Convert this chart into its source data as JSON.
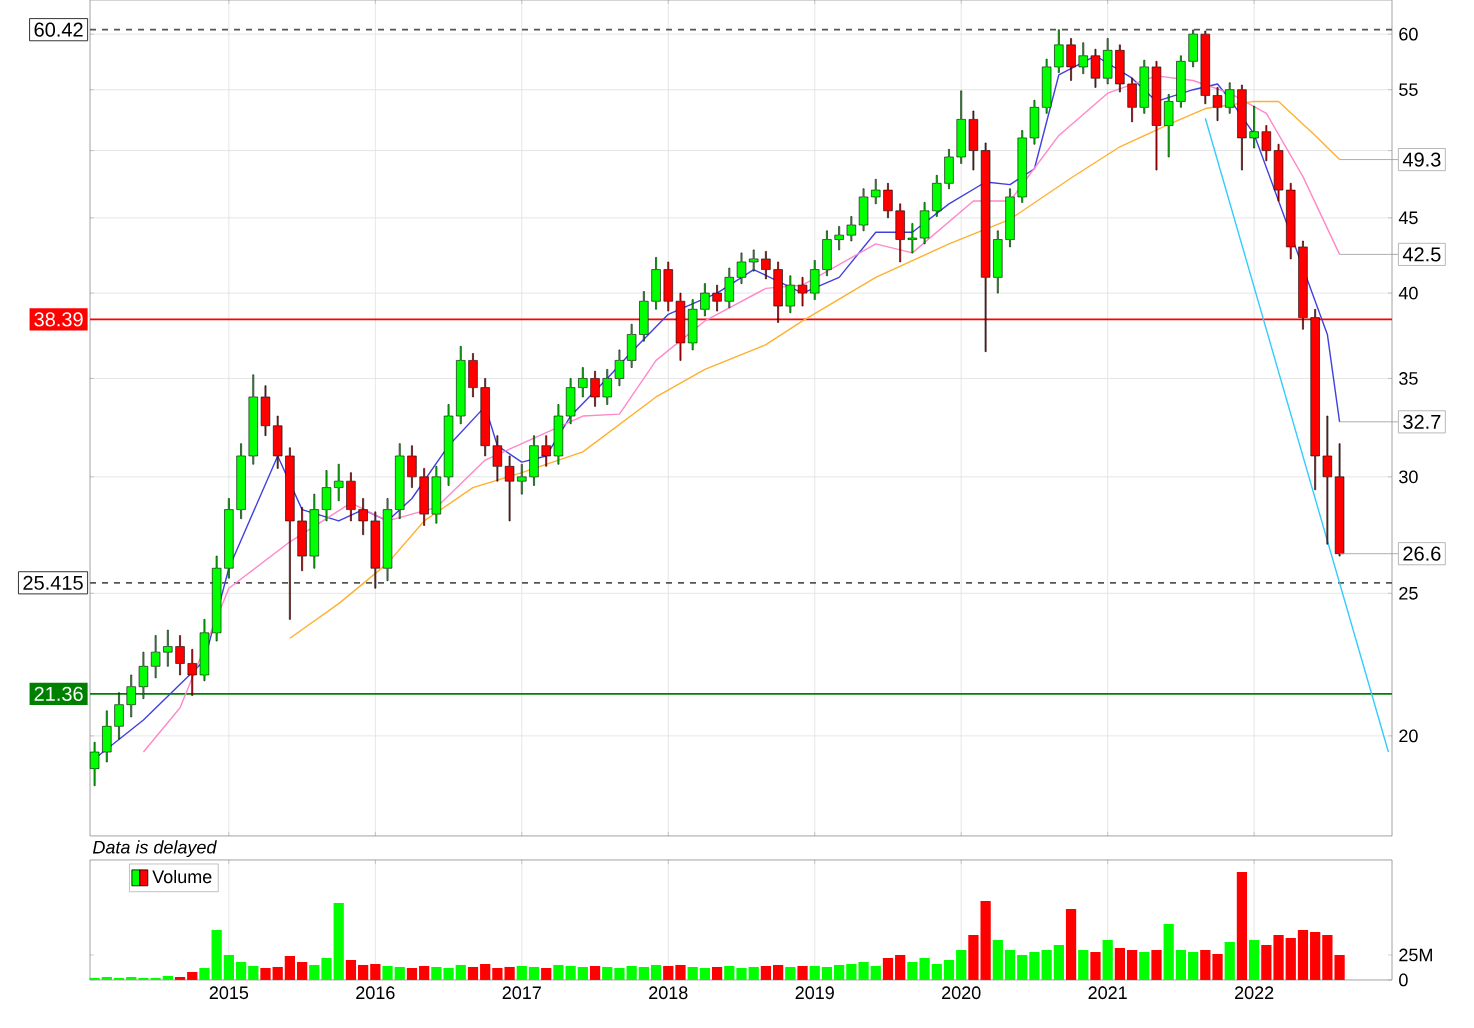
{
  "chart_data": [
    {
      "type": "candlestick",
      "x": [
        "2014-02",
        "2014-03",
        "2014-04",
        "2014-05",
        "2014-06",
        "2014-07",
        "2014-08",
        "2014-09",
        "2014-10",
        "2014-11",
        "2014-12",
        "2015-01",
        "2015-02",
        "2015-03",
        "2015-04",
        "2015-05",
        "2015-06",
        "2015-07",
        "2015-08",
        "2015-09",
        "2015-10",
        "2015-11",
        "2015-12",
        "2016-01",
        "2016-02",
        "2016-03",
        "2016-04",
        "2016-05",
        "2016-06",
        "2016-07",
        "2016-08",
        "2016-09",
        "2016-10",
        "2016-11",
        "2016-12",
        "2017-01",
        "2017-02",
        "2017-03",
        "2017-04",
        "2017-05",
        "2017-06",
        "2017-07",
        "2017-08",
        "2017-09",
        "2017-10",
        "2017-11",
        "2017-12",
        "2018-01",
        "2018-02",
        "2018-03",
        "2018-04",
        "2018-05",
        "2018-06",
        "2018-07",
        "2018-08",
        "2018-09",
        "2018-10",
        "2018-11",
        "2018-12",
        "2019-01",
        "2019-02",
        "2019-03",
        "2019-04",
        "2019-05",
        "2019-06",
        "2019-07",
        "2019-08",
        "2019-09",
        "2019-10",
        "2019-11",
        "2019-12",
        "2020-01",
        "2020-02",
        "2020-03",
        "2020-04",
        "2020-05",
        "2020-06",
        "2020-07",
        "2020-08",
        "2020-09",
        "2020-10",
        "2020-11",
        "2020-12",
        "2021-01",
        "2021-02",
        "2021-03",
        "2021-04",
        "2021-05",
        "2021-06",
        "2021-07",
        "2021-08",
        "2021-09",
        "2021-10",
        "2021-11",
        "2021-12",
        "2022-01",
        "2022-02",
        "2022-03",
        "2022-04",
        "2022-05",
        "2022-06",
        "2022-07",
        "2022-08"
      ],
      "ohlc": [
        [
          19.0,
          19.8,
          18.5,
          19.5
        ],
        [
          19.5,
          20.8,
          19.2,
          20.3
        ],
        [
          20.3,
          21.4,
          19.9,
          21.0
        ],
        [
          21.0,
          22.0,
          20.6,
          21.6
        ],
        [
          21.6,
          22.8,
          21.2,
          22.3
        ],
        [
          22.3,
          23.4,
          21.9,
          22.8
        ],
        [
          22.8,
          23.6,
          22.3,
          23.0
        ],
        [
          23.0,
          23.4,
          22.0,
          22.4
        ],
        [
          22.4,
          22.9,
          21.3,
          22.0
        ],
        [
          22.0,
          24.0,
          21.8,
          23.5
        ],
        [
          23.5,
          26.5,
          23.2,
          26.0
        ],
        [
          26.0,
          29.0,
          25.6,
          28.5
        ],
        [
          28.5,
          31.6,
          28.1,
          31.0
        ],
        [
          31.0,
          35.2,
          30.6,
          34.0
        ],
        [
          34.0,
          34.6,
          32.0,
          32.5
        ],
        [
          32.5,
          33.0,
          30.4,
          31.0
        ],
        [
          31.0,
          31.4,
          24.0,
          28.0
        ],
        [
          28.0,
          28.6,
          25.9,
          26.5
        ],
        [
          26.5,
          29.2,
          26.0,
          28.5
        ],
        [
          28.5,
          30.3,
          28.0,
          29.5
        ],
        [
          29.5,
          30.6,
          28.9,
          29.8
        ],
        [
          29.8,
          30.2,
          28.0,
          28.5
        ],
        [
          28.5,
          29.0,
          27.4,
          28.0
        ],
        [
          28.0,
          28.4,
          25.2,
          26.0
        ],
        [
          26.0,
          29.0,
          25.5,
          28.5
        ],
        [
          28.5,
          31.6,
          28.1,
          31.0
        ],
        [
          31.0,
          31.5,
          29.5,
          30.0
        ],
        [
          30.0,
          30.4,
          27.8,
          28.3
        ],
        [
          28.3,
          30.5,
          27.9,
          30.0
        ],
        [
          30.0,
          33.6,
          29.6,
          33.0
        ],
        [
          33.0,
          36.8,
          32.6,
          36.0
        ],
        [
          36.0,
          36.4,
          34.0,
          34.5
        ],
        [
          34.5,
          35.0,
          31.0,
          31.5
        ],
        [
          31.5,
          32.0,
          29.8,
          30.5
        ],
        [
          30.5,
          31.0,
          28.0,
          29.8
        ],
        [
          29.8,
          30.6,
          29.2,
          30.0
        ],
        [
          30.0,
          32.0,
          29.6,
          31.5
        ],
        [
          31.5,
          32.0,
          30.5,
          31.0
        ],
        [
          31.0,
          33.6,
          30.6,
          33.0
        ],
        [
          33.0,
          35.0,
          32.6,
          34.5
        ],
        [
          34.5,
          35.6,
          34.0,
          35.0
        ],
        [
          35.0,
          35.4,
          33.5,
          34.0
        ],
        [
          34.0,
          35.5,
          33.6,
          35.0
        ],
        [
          35.0,
          36.6,
          34.6,
          36.0
        ],
        [
          36.0,
          38.1,
          35.6,
          37.5
        ],
        [
          37.5,
          40.1,
          37.1,
          39.5
        ],
        [
          39.5,
          42.3,
          39.0,
          41.5
        ],
        [
          41.5,
          42.0,
          38.9,
          39.5
        ],
        [
          39.5,
          40.0,
          36.0,
          37.0
        ],
        [
          37.0,
          39.6,
          36.6,
          39.0
        ],
        [
          39.0,
          40.6,
          38.6,
          40.0
        ],
        [
          40.0,
          40.5,
          38.9,
          39.5
        ],
        [
          39.5,
          41.6,
          39.1,
          41.0
        ],
        [
          41.0,
          42.6,
          40.6,
          42.0
        ],
        [
          42.0,
          42.8,
          41.4,
          42.2
        ],
        [
          42.2,
          42.7,
          40.9,
          41.5
        ],
        [
          41.5,
          42.0,
          38.2,
          39.2
        ],
        [
          39.2,
          41.1,
          38.8,
          40.5
        ],
        [
          40.5,
          41.0,
          39.2,
          40.0
        ],
        [
          40.0,
          42.1,
          39.6,
          41.5
        ],
        [
          41.5,
          44.1,
          41.1,
          43.5
        ],
        [
          43.5,
          44.4,
          42.8,
          43.8
        ],
        [
          43.8,
          45.1,
          43.4,
          44.5
        ],
        [
          44.5,
          47.1,
          44.1,
          46.5
        ],
        [
          46.5,
          47.8,
          46.0,
          47.0
        ],
        [
          47.0,
          47.5,
          45.0,
          45.5
        ],
        [
          45.5,
          46.0,
          42.0,
          43.5
        ],
        [
          43.5,
          44.6,
          42.6,
          43.6
        ],
        [
          43.6,
          46.1,
          43.2,
          45.5
        ],
        [
          45.5,
          48.1,
          45.1,
          47.5
        ],
        [
          47.5,
          50.1,
          47.1,
          49.5
        ],
        [
          49.5,
          54.9,
          49.0,
          52.5
        ],
        [
          52.5,
          53.2,
          48.5,
          50.0
        ],
        [
          50.0,
          50.6,
          36.5,
          41.0
        ],
        [
          41.0,
          44.1,
          40.0,
          43.5
        ],
        [
          43.5,
          47.1,
          43.0,
          46.5
        ],
        [
          46.5,
          51.6,
          46.1,
          51.0
        ],
        [
          51.0,
          54.1,
          50.5,
          53.5
        ],
        [
          53.5,
          57.7,
          53.0,
          57.0
        ],
        [
          57.0,
          60.42,
          56.5,
          59.0
        ],
        [
          59.0,
          59.6,
          55.8,
          57.0
        ],
        [
          57.0,
          59.2,
          56.4,
          58.0
        ],
        [
          58.0,
          58.6,
          55.2,
          56.0
        ],
        [
          56.0,
          59.6,
          55.5,
          58.5
        ],
        [
          58.5,
          59.0,
          54.8,
          55.5
        ],
        [
          55.5,
          56.0,
          52.3,
          53.5
        ],
        [
          53.5,
          57.6,
          53.0,
          57.0
        ],
        [
          57.0,
          57.5,
          48.5,
          52.0
        ],
        [
          52.0,
          54.6,
          49.5,
          54.0
        ],
        [
          54.0,
          58.0,
          53.5,
          57.5
        ],
        [
          57.5,
          60.4,
          57.0,
          60.0
        ],
        [
          60.0,
          60.3,
          53.8,
          54.5
        ],
        [
          54.5,
          55.2,
          52.4,
          53.5
        ],
        [
          53.5,
          55.6,
          53.0,
          55.0
        ],
        [
          55.0,
          55.4,
          48.5,
          51.0
        ],
        [
          51.0,
          53.6,
          50.2,
          51.5
        ],
        [
          51.5,
          52.0,
          49.2,
          50.0
        ],
        [
          50.0,
          50.5,
          46.2,
          47.0
        ],
        [
          47.0,
          47.5,
          42.2,
          43.0
        ],
        [
          43.0,
          43.4,
          37.8,
          38.5
        ],
        [
          38.5,
          39.0,
          29.4,
          31.0
        ],
        [
          31.0,
          33.0,
          27.0,
          30.0
        ],
        [
          30.0,
          31.6,
          26.5,
          26.6
        ]
      ],
      "colors": [
        "#00ff00",
        "#00ff00",
        "#00ff00",
        "#00ff00",
        "#00ff00",
        "#00ff00",
        "#00ff00",
        "#ff0000",
        "#ff0000",
        "#00ff00",
        "#00ff00",
        "#00ff00",
        "#00ff00",
        "#00ff00",
        "#ff0000",
        "#ff0000",
        "#ff0000",
        "#ff0000",
        "#00ff00",
        "#00ff00",
        "#00ff00",
        "#ff0000",
        "#ff0000",
        "#ff0000",
        "#00ff00",
        "#00ff00",
        "#ff0000",
        "#ff0000",
        "#00ff00",
        "#00ff00",
        "#00ff00",
        "#ff0000",
        "#ff0000",
        "#ff0000",
        "#ff0000",
        "#00ff00",
        "#00ff00",
        "#ff0000",
        "#00ff00",
        "#00ff00",
        "#00ff00",
        "#ff0000",
        "#00ff00",
        "#00ff00",
        "#00ff00",
        "#00ff00",
        "#00ff00",
        "#ff0000",
        "#ff0000",
        "#00ff00",
        "#00ff00",
        "#ff0000",
        "#00ff00",
        "#00ff00",
        "#00ff00",
        "#ff0000",
        "#ff0000",
        "#00ff00",
        "#ff0000",
        "#00ff00",
        "#00ff00",
        "#00ff00",
        "#00ff00",
        "#00ff00",
        "#00ff00",
        "#ff0000",
        "#ff0000",
        "#00ff00",
        "#00ff00",
        "#00ff00",
        "#00ff00",
        "#00ff00",
        "#ff0000",
        "#ff0000",
        "#00ff00",
        "#00ff00",
        "#00ff00",
        "#00ff00",
        "#00ff00",
        "#00ff00",
        "#ff0000",
        "#00ff00",
        "#ff0000",
        "#00ff00",
        "#ff0000",
        "#ff0000",
        "#00ff00",
        "#ff0000",
        "#00ff00",
        "#00ff00",
        "#00ff00",
        "#ff0000",
        "#ff0000",
        "#00ff00",
        "#ff0000",
        "#00ff00",
        "#ff0000",
        "#ff0000",
        "#ff0000",
        "#ff0000",
        "#ff0000",
        "#ff0000",
        "#ff0000"
      ],
      "series": [
        {
          "type": "line",
          "color": "#4040e0",
          "x": [
            "2014-02",
            "2014-06",
            "2014-11",
            "2015-01",
            "2015-05",
            "2015-07",
            "2015-10",
            "2015-12",
            "2016-02",
            "2016-04",
            "2016-07",
            "2016-10",
            "2016-11",
            "2017-01",
            "2017-03",
            "2017-05",
            "2017-08",
            "2017-10",
            "2018-01",
            "2018-05",
            "2018-08",
            "2018-12",
            "2019-03",
            "2019-06",
            "2019-09",
            "2019-12",
            "2020-03",
            "2020-05",
            "2020-07",
            "2020-09",
            "2020-12",
            "2021-03",
            "2021-05",
            "2021-08",
            "2021-10",
            "2021-11",
            "2022-01",
            "2022-03",
            "2022-07",
            "2022-08"
          ],
          "values": [
            19.3,
            20.5,
            22.5,
            26,
            31,
            28.5,
            28,
            28.5,
            28,
            29,
            31.5,
            33.5,
            31.5,
            30.7,
            31,
            33,
            35,
            36.5,
            38.7,
            40,
            41.5,
            40,
            41,
            44,
            44,
            46,
            47.6,
            47.4,
            48.6,
            56.3,
            58,
            56,
            54,
            55,
            55.5,
            54.2,
            51.3,
            null,
            37.5,
            32.7
          ]
        },
        {
          "type": "line",
          "color": "#ff88c8",
          "x": [
            "2014-06",
            "2014-09",
            "2015-01",
            "2015-06",
            "2015-11",
            "2016-02",
            "2016-06",
            "2016-10",
            "2017-01",
            "2017-06",
            "2017-09",
            "2017-12",
            "2018-04",
            "2018-09",
            "2018-12",
            "2019-06",
            "2019-09",
            "2020-02",
            "2020-05",
            "2020-09",
            "2021-01",
            "2021-05",
            "2021-08",
            "2021-11",
            "2022-02",
            "2022-05",
            "2022-08"
          ],
          "values": [
            19.5,
            20.9,
            25.2,
            27.1,
            28.8,
            28,
            28.6,
            30.8,
            31.6,
            33,
            33.1,
            36,
            38.3,
            40.3,
            40.5,
            43.2,
            42.6,
            46.2,
            46.2,
            51.2,
            54.7,
            56.2,
            55.8,
            54.7,
            53,
            48,
            42.5
          ]
        },
        {
          "type": "line",
          "color": "#ffb030",
          "x": [
            "2015-06",
            "2015-10",
            "2016-02",
            "2016-05",
            "2016-09",
            "2017-01",
            "2017-06",
            "2017-12",
            "2018-04",
            "2018-09",
            "2018-12",
            "2019-06",
            "2019-12",
            "2020-05",
            "2020-10",
            "2021-02",
            "2021-06",
            "2021-09",
            "2022-01",
            "2022-03",
            "2022-06",
            "2022-08"
          ],
          "values": [
            23.3,
            24.6,
            26.2,
            28,
            29.5,
            30.2,
            31.2,
            34,
            35.5,
            36.9,
            38.3,
            41,
            43.2,
            44.9,
            47.9,
            50.3,
            52.1,
            53.4,
            54,
            54,
            51.2,
            49.3
          ]
        },
        {
          "type": "line",
          "color": "#33ccff",
          "x": [
            "2021-09",
            "2022-12"
          ],
          "values": [
            52.6,
            19.5
          ]
        }
      ],
      "ref_lines": [
        {
          "axis": "y",
          "value": 60.42,
          "label": "60.42",
          "color": "#555555",
          "line_style": "dashed"
        },
        {
          "axis": "y",
          "value": 38.39,
          "label": "38.39",
          "color": "#ff0000",
          "line_style": "solid"
        },
        {
          "axis": "y",
          "value": 25.415,
          "label": "25.415",
          "color": "#555555",
          "line_style": "dashed"
        },
        {
          "axis": "y",
          "value": 21.36,
          "label": "21.36",
          "color": "#008000",
          "line_style": "solid"
        }
      ],
      "annotations": [
        {
          "text": "49.3",
          "x": "2022-08",
          "y": 49.3
        },
        {
          "text": "42.5",
          "x": "2022-08",
          "y": 42.5
        },
        {
          "text": "32.7",
          "x": "2022-08",
          "y": 32.7
        },
        {
          "text": "26.6",
          "x": "2022-08",
          "y": 26.6
        },
        "Data is delayed"
      ],
      "xlim": [
        "2014-01-20",
        "2022-12-10"
      ],
      "xticks": [
        "2015",
        "2016",
        "2017",
        "2018",
        "2019",
        "2020",
        "2021",
        "2022"
      ],
      "ylim": [
        17.1,
        63.3
      ],
      "yticks": [
        20,
        25,
        30,
        35,
        40,
        45,
        {
          "value": 50,
          "label": null
        },
        55,
        60
      ],
      "log": true,
      "grid": true,
      "tick_labels": "y"
    },
    {
      "type": "bar",
      "x": [
        "2014-02",
        "2014-03",
        "2014-04",
        "2014-05",
        "2014-06",
        "2014-07",
        "2014-08",
        "2014-09",
        "2014-10",
        "2014-11",
        "2014-12",
        "2015-01",
        "2015-02",
        "2015-03",
        "2015-04",
        "2015-05",
        "2015-06",
        "2015-07",
        "2015-08",
        "2015-09",
        "2015-10",
        "2015-11",
        "2015-12",
        "2016-01",
        "2016-02",
        "2016-03",
        "2016-04",
        "2016-05",
        "2016-06",
        "2016-07",
        "2016-08",
        "2016-09",
        "2016-10",
        "2016-11",
        "2016-12",
        "2017-01",
        "2017-02",
        "2017-03",
        "2017-04",
        "2017-05",
        "2017-06",
        "2017-07",
        "2017-08",
        "2017-09",
        "2017-10",
        "2017-11",
        "2017-12",
        "2018-01",
        "2018-02",
        "2018-03",
        "2018-04",
        "2018-05",
        "2018-06",
        "2018-07",
        "2018-08",
        "2018-09",
        "2018-10",
        "2018-11",
        "2018-12",
        "2019-01",
        "2019-02",
        "2019-03",
        "2019-04",
        "2019-05",
        "2019-06",
        "2019-07",
        "2019-08",
        "2019-09",
        "2019-10",
        "2019-11",
        "2019-12",
        "2020-01",
        "2020-02",
        "2020-03",
        "2020-04",
        "2020-05",
        "2020-06",
        "2020-07",
        "2020-08",
        "2020-09",
        "2020-10",
        "2020-11",
        "2020-12",
        "2021-01",
        "2021-02",
        "2021-03",
        "2021-04",
        "2021-05",
        "2021-06",
        "2021-07",
        "2021-08",
        "2021-09",
        "2021-10",
        "2021-11",
        "2021-12",
        "2022-01",
        "2022-02",
        "2022-03",
        "2022-04",
        "2022-05",
        "2022-06",
        "2022-07",
        "2022-08"
      ],
      "series": [
        {
          "name": "Volume",
          "values": [
            2,
            3,
            2,
            3,
            2,
            2,
            4,
            3,
            8,
            12,
            50,
            25,
            18,
            14,
            12,
            13,
            24,
            18,
            15,
            22,
            77,
            20,
            15,
            16,
            14,
            13,
            12,
            14,
            13,
            12,
            15,
            13,
            16,
            12,
            13,
            14,
            13,
            12,
            15,
            14,
            13,
            14,
            13,
            12,
            14,
            13,
            15,
            14,
            15,
            13,
            12,
            13,
            14,
            12,
            13,
            14,
            15,
            13,
            14,
            14,
            13,
            15,
            16,
            18,
            14,
            22,
            25,
            18,
            22,
            16,
            20,
            30,
            45,
            79,
            40,
            30,
            25,
            28,
            30,
            35,
            71,
            30,
            28,
            40,
            32,
            30,
            28,
            30,
            56,
            30,
            28,
            30,
            26,
            38,
            108,
            40,
            35,
            45,
            42,
            50,
            48,
            45,
            25
          ],
          "colors": [
            "#00ff00",
            "#00ff00",
            "#00ff00",
            "#00ff00",
            "#00ff00",
            "#00ff00",
            "#00ff00",
            "#ff0000",
            "#ff0000",
            "#00ff00",
            "#00ff00",
            "#00ff00",
            "#00ff00",
            "#00ff00",
            "#ff0000",
            "#ff0000",
            "#ff0000",
            "#ff0000",
            "#00ff00",
            "#00ff00",
            "#00ff00",
            "#ff0000",
            "#ff0000",
            "#ff0000",
            "#00ff00",
            "#00ff00",
            "#ff0000",
            "#ff0000",
            "#00ff00",
            "#00ff00",
            "#00ff00",
            "#ff0000",
            "#ff0000",
            "#ff0000",
            "#ff0000",
            "#00ff00",
            "#00ff00",
            "#ff0000",
            "#00ff00",
            "#00ff00",
            "#00ff00",
            "#ff0000",
            "#00ff00",
            "#00ff00",
            "#00ff00",
            "#00ff00",
            "#00ff00",
            "#ff0000",
            "#ff0000",
            "#00ff00",
            "#00ff00",
            "#ff0000",
            "#00ff00",
            "#00ff00",
            "#00ff00",
            "#ff0000",
            "#ff0000",
            "#00ff00",
            "#ff0000",
            "#00ff00",
            "#00ff00",
            "#00ff00",
            "#00ff00",
            "#00ff00",
            "#00ff00",
            "#ff0000",
            "#ff0000",
            "#00ff00",
            "#00ff00",
            "#00ff00",
            "#00ff00",
            "#00ff00",
            "#ff0000",
            "#ff0000",
            "#00ff00",
            "#00ff00",
            "#00ff00",
            "#00ff00",
            "#00ff00",
            "#00ff00",
            "#ff0000",
            "#00ff00",
            "#ff0000",
            "#00ff00",
            "#ff0000",
            "#ff0000",
            "#00ff00",
            "#ff0000",
            "#00ff00",
            "#00ff00",
            "#00ff00",
            "#ff0000",
            "#ff0000",
            "#00ff00",
            "#ff0000",
            "#00ff00",
            "#ff0000",
            "#ff0000",
            "#ff0000",
            "#ff0000",
            "#ff0000",
            "#ff0000",
            "#ff0000"
          ]
        }
      ],
      "xlim": [
        "2014-01-20",
        "2022-12-10"
      ],
      "xticks": [
        "2015",
        "2016",
        "2017",
        "2018",
        "2019",
        "2020",
        "2021",
        "2022"
      ],
      "ylim": [
        0,
        120
      ],
      "yticks": [
        0,
        {
          "value": 25,
          "label": "25M"
        }
      ],
      "grid": "x",
      "legend": "top left"
    }
  ]
}
